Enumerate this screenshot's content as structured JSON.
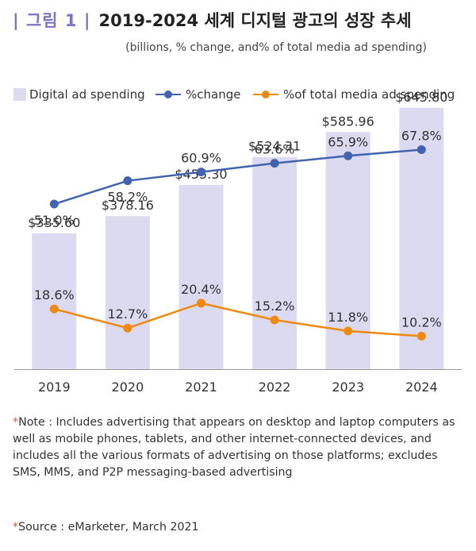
{
  "header": {
    "figure_label": "| 그림 1 |",
    "title": "2019-2024 세계 디지털 광고의 성장 추세"
  },
  "subtitle": "(billions, % change, and% of total media ad spending)",
  "chart_data": {
    "type": "bar",
    "categories": [
      "2019",
      "2020",
      "2021",
      "2022",
      "2023",
      "2024"
    ],
    "series": [
      {
        "name": "Digital ad spending",
        "type": "bar",
        "axis": "primary",
        "values": [
          335.6,
          378.16,
          455.3,
          524.31,
          585.96,
          645.8
        ],
        "labels": [
          "$335.60",
          "$378.16",
          "$455.30",
          "$524.31",
          "$585.96",
          "$645.80"
        ],
        "color": "#dcdaf1"
      },
      {
        "name": "%change",
        "type": "line",
        "axis": "secondary",
        "values": [
          51.0,
          58.2,
          60.9,
          63.6,
          65.9,
          67.8
        ],
        "labels": [
          "51.0%",
          "58.2%",
          "60.9%",
          "63.6%",
          "65.9%",
          "67.8%"
        ],
        "color": "#4264b0"
      },
      {
        "name": "%of total media ad spending",
        "type": "line",
        "axis": "secondary",
        "values": [
          18.6,
          12.7,
          20.4,
          15.2,
          11.8,
          10.2
        ],
        "labels": [
          "18.6%",
          "12.7%",
          "20.4%",
          "15.2%",
          "11.8%",
          "10.2%"
        ],
        "color": "#ee8a12"
      }
    ],
    "ylim": [
      0,
      720
    ],
    "y2lim": [
      0,
      90
    ],
    "grid": false,
    "legend_position": "top"
  },
  "footer": {
    "note_mark": "*",
    "note": "Note : Includes advertising that appears on desktop and laptop computers as well as mobile phones, tablets, and other internet-connected devices, and includes all the various formats of advertising on those platforms; excludes SMS, MMS, and P2P messaging-based advertising",
    "source_mark": "*",
    "source": "Source : eMarketer, March 2021"
  }
}
